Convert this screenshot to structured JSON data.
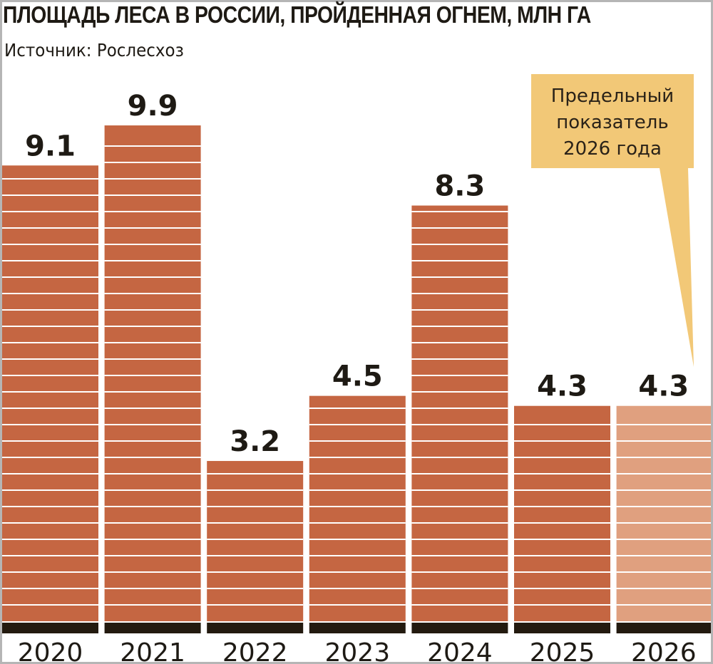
{
  "chart_data": {
    "type": "bar",
    "title": "ПЛОЩАДЬ ЛЕСА В РОССИИ, ПРОЙДЕННАЯ ОГНЕМ, МЛН ГА",
    "source": "Источник: Рослесхоз",
    "xlabel": "",
    "ylabel": "",
    "ylim": [
      0,
      10
    ],
    "grid": false,
    "categories": [
      "2020",
      "2021",
      "2022",
      "2023",
      "2024",
      "2025",
      "2026"
    ],
    "values": [
      9.1,
      9.9,
      3.2,
      4.5,
      8.3,
      4.3,
      4.3
    ],
    "value_labels": [
      "9.1",
      "9.9",
      "3.2",
      "4.5",
      "8.3",
      "4.3",
      "4.3"
    ],
    "highlight_index": 6,
    "annotation": {
      "lines": [
        "Предельный",
        "показатель",
        "2026 года"
      ],
      "target_category": "2026"
    },
    "colors": {
      "bar": "#c56642",
      "bar_target": "#e0a07f",
      "base": "#231a0f",
      "callout": "#f2c877",
      "text": "#1e1a14"
    }
  }
}
